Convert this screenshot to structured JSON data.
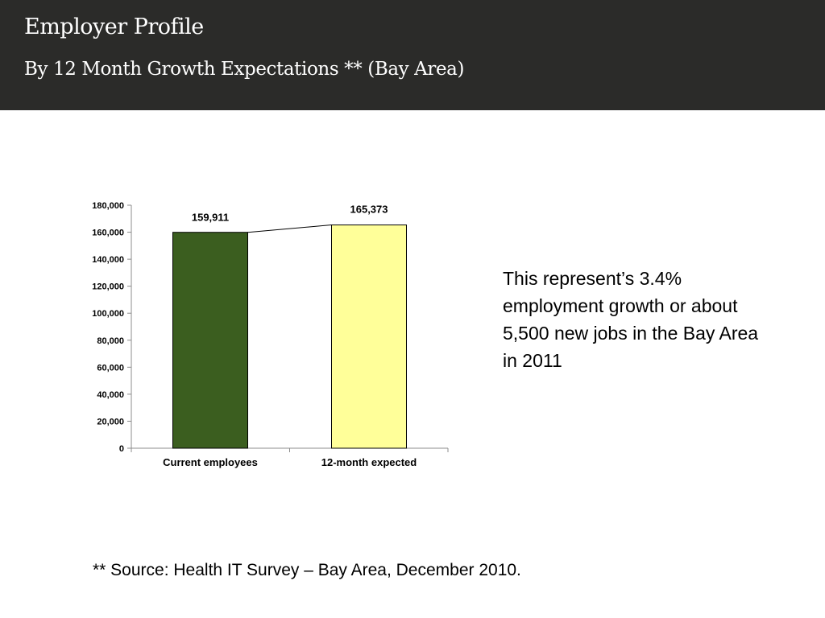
{
  "header": {
    "title": "Employer Profile",
    "subtitle": "By 12 Month Growth Expectations ** (Bay Area)"
  },
  "note": "This represent’s 3.4% employment growth or about 5,500 new jobs in the Bay Area in 2011",
  "source": "** Source: Health IT Survey – Bay Area, December 2010.",
  "chart_data": {
    "type": "bar",
    "categories": [
      "Current employees",
      "12-month expected"
    ],
    "values": [
      159911,
      165373
    ],
    "data_labels": [
      "159,911",
      "165,373"
    ],
    "bar_colors": [
      "#3b5e1f",
      "#ffff99"
    ],
    "ylim": [
      0,
      180000
    ],
    "y_ticks": [
      0,
      20000,
      40000,
      60000,
      80000,
      100000,
      120000,
      140000,
      160000,
      180000
    ],
    "y_tick_labels": [
      "0",
      "20,000",
      "40,000",
      "60,000",
      "80,000",
      "100,000",
      "120,000",
      "140,000",
      "160,000",
      "180,000"
    ],
    "connector_line": true,
    "grid": false,
    "xlabel": "",
    "ylabel": "",
    "title": ""
  }
}
